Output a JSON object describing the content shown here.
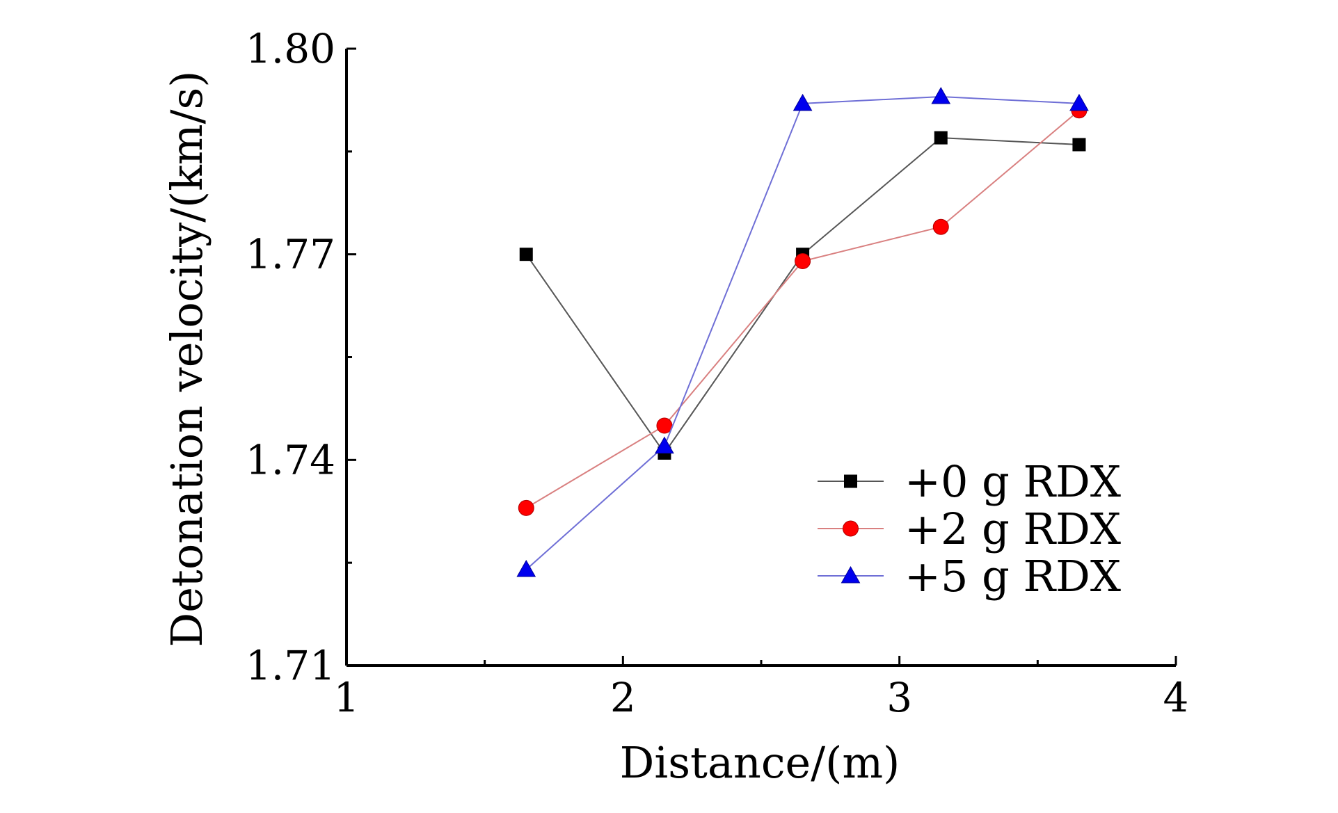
{
  "chart_data": {
    "type": "line",
    "title": "",
    "xlabel": "Distance/(m)",
    "ylabel": "Detonation velocity/(km/s)",
    "xlim": [
      1,
      4
    ],
    "ylim": [
      1.71,
      1.8
    ],
    "xticks": [
      1,
      2,
      3,
      4
    ],
    "xtick_labels": [
      "1",
      "2",
      "3",
      "4"
    ],
    "x_minor_ticks": [
      1.5,
      2.5,
      3.5
    ],
    "yticks": [
      1.71,
      1.74,
      1.77,
      1.8
    ],
    "ytick_labels": [
      "1.71",
      "1.74",
      "1.77",
      "1.80"
    ],
    "y_minor_ticks": [
      1.725,
      1.755,
      1.785
    ],
    "grid": false,
    "legend_position": "lower-right",
    "x": [
      1.65,
      2.15,
      2.65,
      3.15,
      3.65
    ],
    "series": [
      {
        "name": "+0 g RDX",
        "marker": "square",
        "color": "#000000",
        "line_color": "#555555",
        "values": [
          1.77,
          1.741,
          1.77,
          1.787,
          1.786
        ]
      },
      {
        "name": "+2 g RDX",
        "marker": "circle",
        "color": "#ff0000",
        "line_color": "#d98080",
        "values": [
          1.733,
          1.745,
          1.769,
          1.774,
          1.791
        ]
      },
      {
        "name": "+5 g RDX",
        "marker": "triangle",
        "color": "#0000ee",
        "line_color": "#6f6fd6",
        "values": [
          1.724,
          1.742,
          1.792,
          1.793,
          1.792
        ]
      }
    ]
  }
}
